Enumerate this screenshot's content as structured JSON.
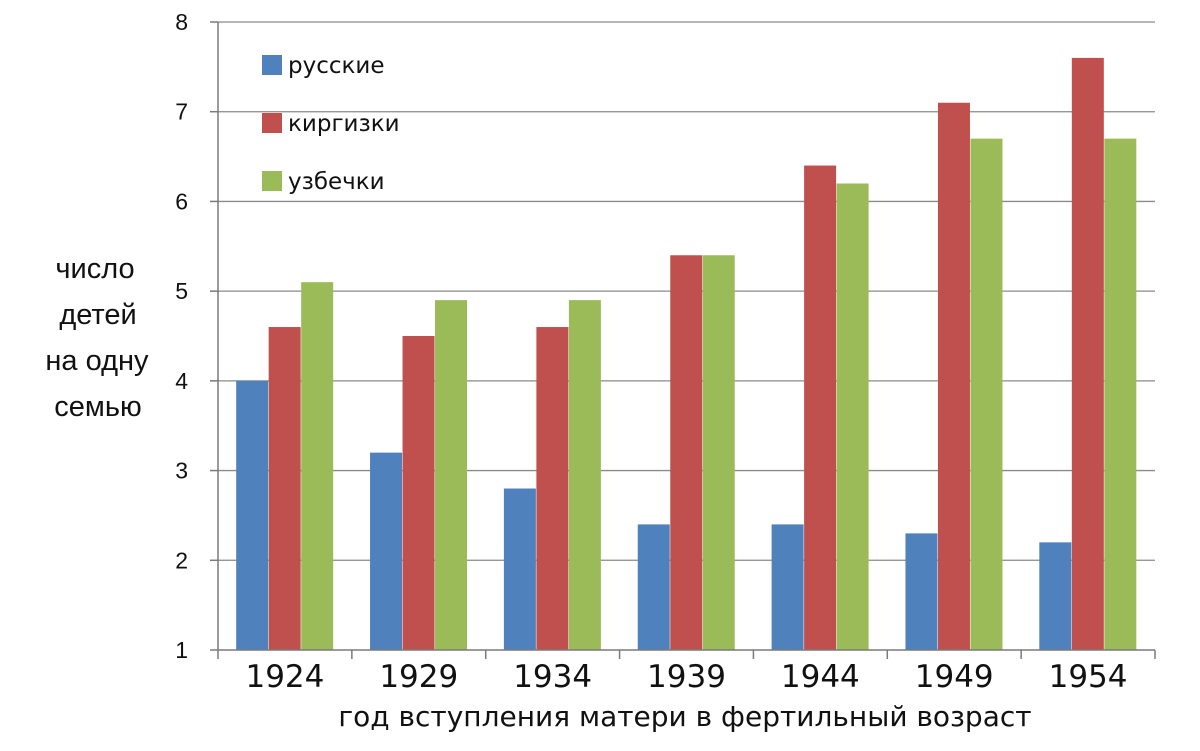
{
  "chart_data": {
    "type": "bar",
    "title": "",
    "xlabel": "год вступления матери в фертильный возраст",
    "ylabel": [
      "число",
      "детей",
      "на одну",
      "семью"
    ],
    "categories": [
      "1924",
      "1929",
      "1934",
      "1939",
      "1944",
      "1949",
      "1954"
    ],
    "ylim": [
      1,
      8
    ],
    "yticks": [
      "1",
      "2",
      "3",
      "4",
      "5",
      "6",
      "7",
      "8"
    ],
    "grid": true,
    "legend_position": "top-left",
    "series": [
      {
        "name": "русские",
        "color": "#4F81BD",
        "values": [
          4.0,
          3.2,
          2.8,
          2.4,
          2.4,
          2.3,
          2.2
        ]
      },
      {
        "name": "киргизки",
        "color": "#C0504D",
        "values": [
          4.6,
          4.5,
          4.6,
          5.4,
          6.4,
          7.1,
          7.6
        ]
      },
      {
        "name": "узбечки",
        "color": "#9BBB59",
        "values": [
          5.1,
          4.9,
          4.9,
          5.4,
          6.2,
          6.7,
          6.7
        ]
      }
    ]
  }
}
